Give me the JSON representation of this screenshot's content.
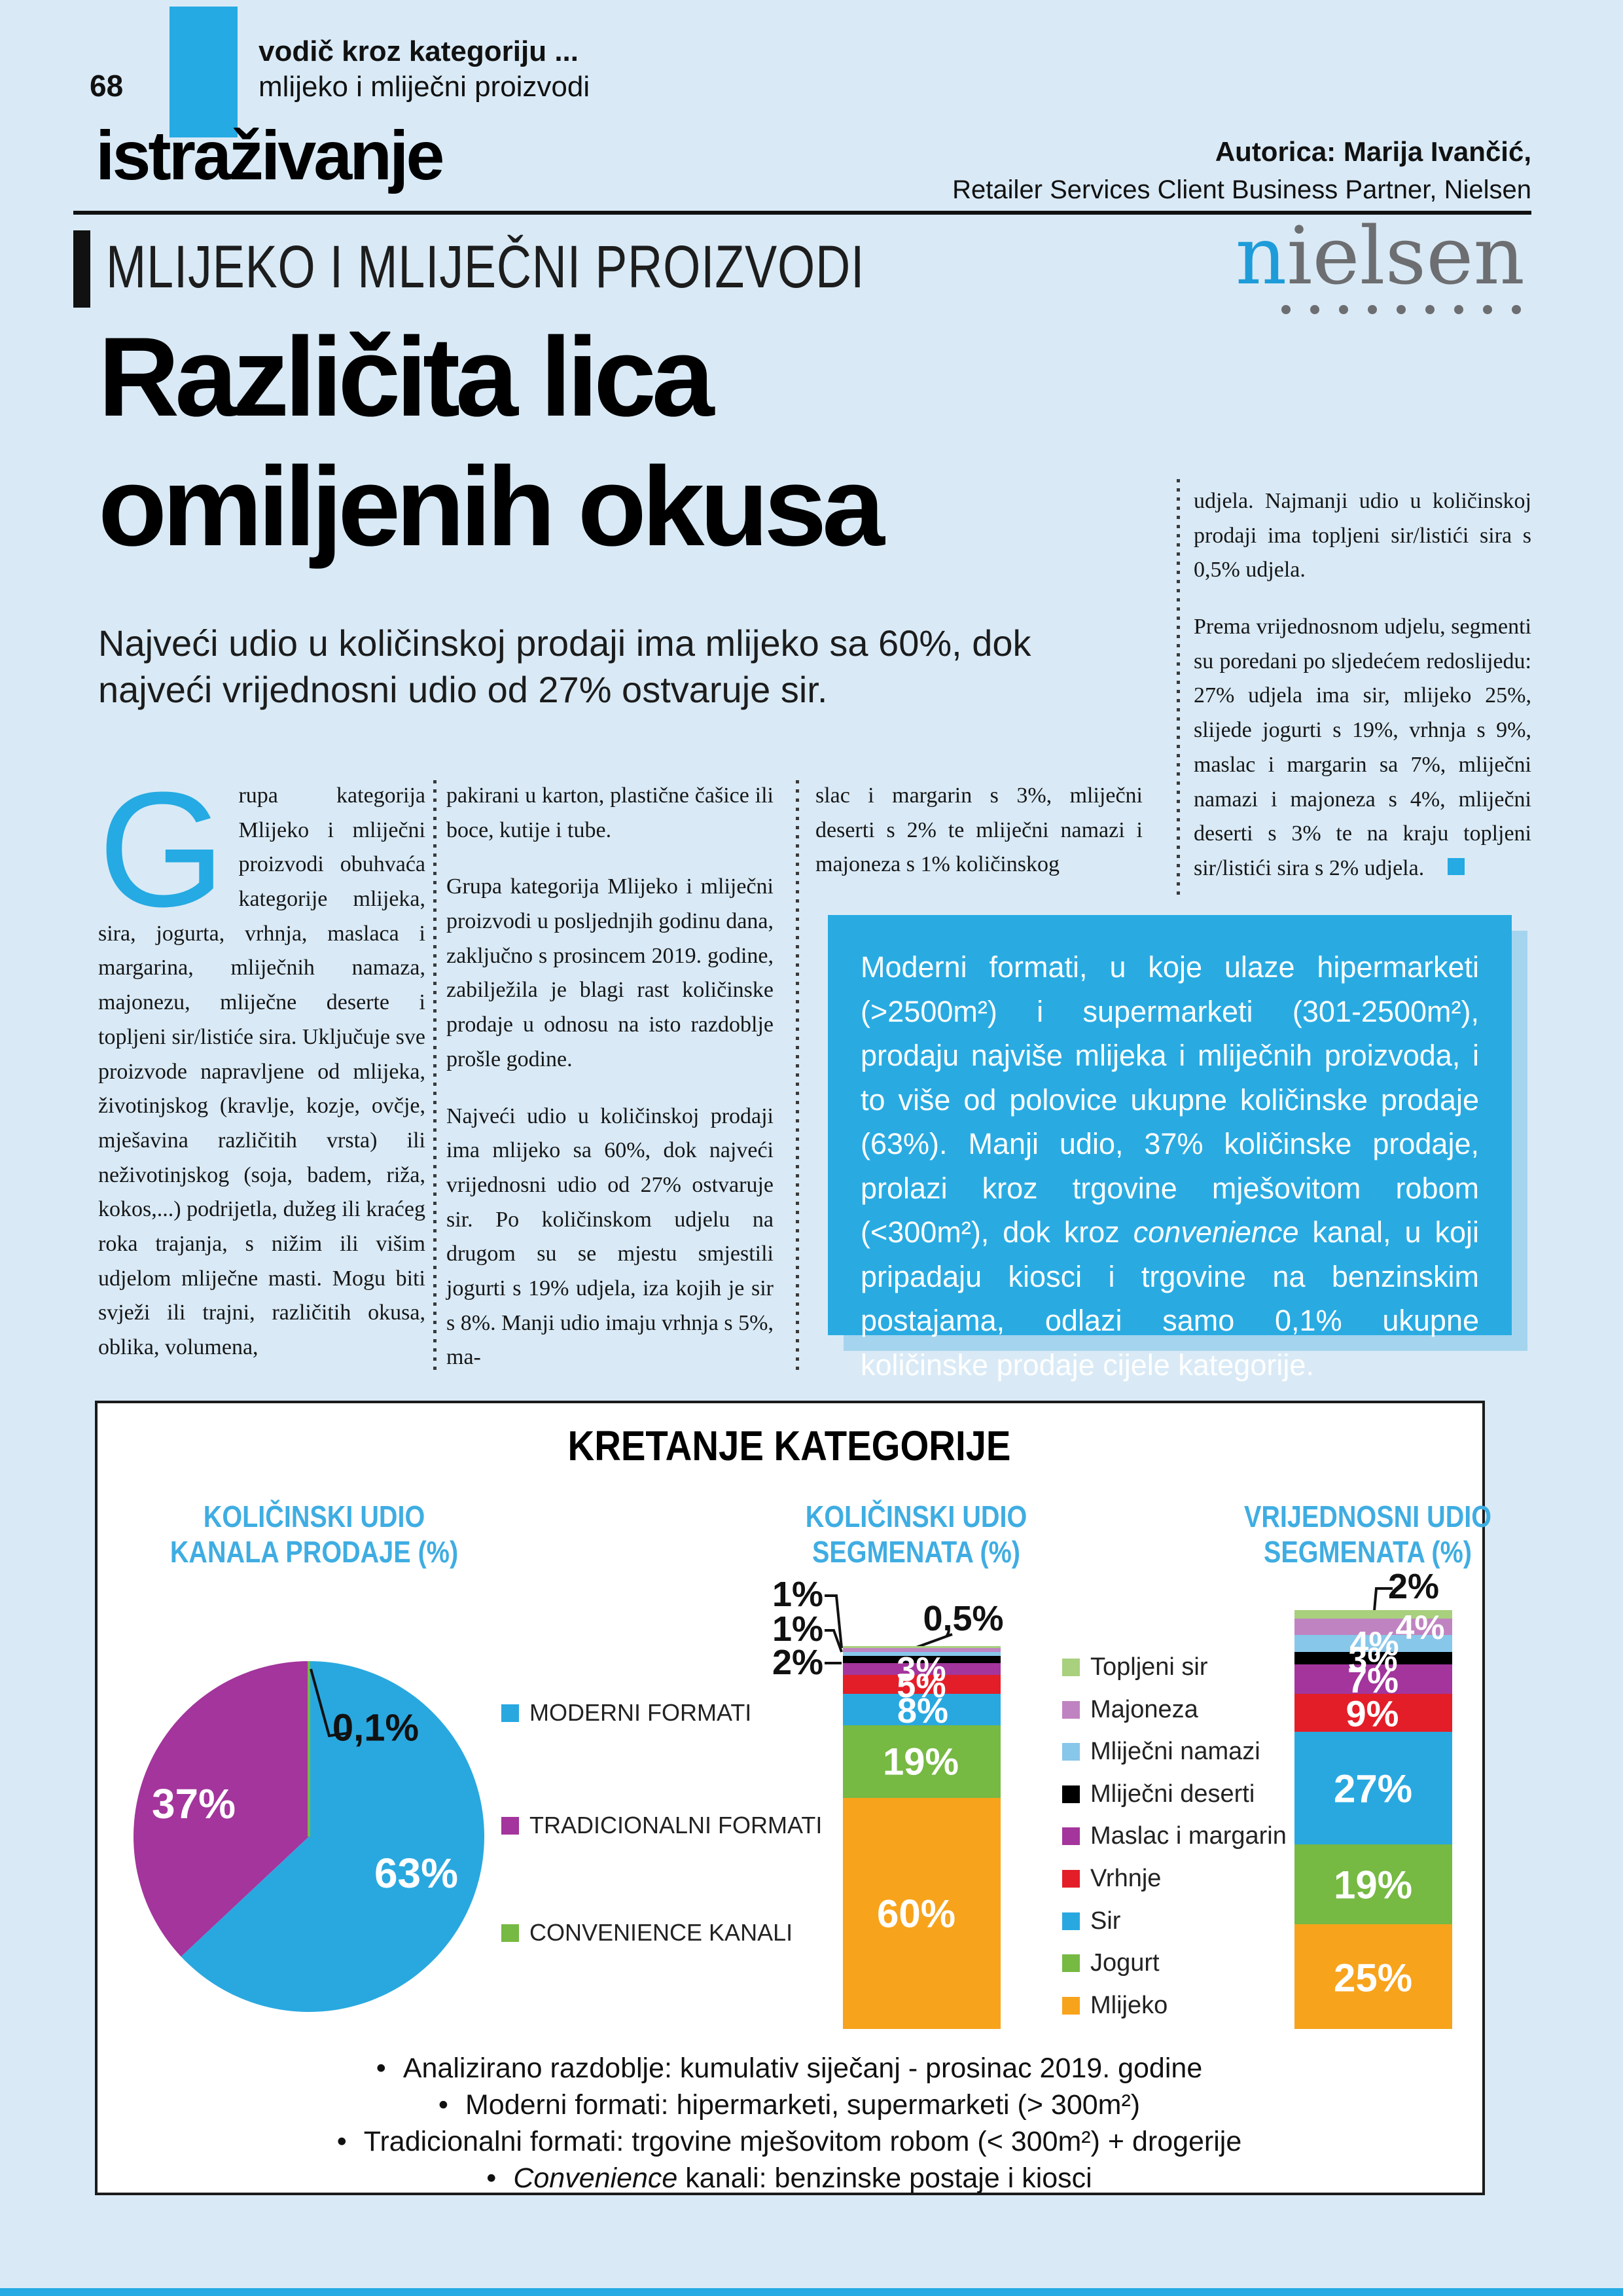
{
  "header": {
    "page_number": "68",
    "kicker_line1": "vodič kroz kategoriju ...",
    "kicker_line2": "mlijeko i mliječni proizvodi",
    "section_title": "istraživanje",
    "author_line1": "Autorica: Marija Ivančić,",
    "author_line2": "Retailer Services Client Business Partner, Nielsen"
  },
  "category_bar": {
    "heading": "MLIJEKO I MLIJEČNI PROIZVODI",
    "brand_first_letter": "n",
    "brand_rest": "ielsen",
    "brand_dots": 9
  },
  "article": {
    "title_line1": "Različita lica",
    "title_line2": "omiljenih okusa",
    "lead": "Najveći udio u količinskoj prodaji ima mlijeko sa 60%, dok najveći vrijednosni udio od 27% ostvaruje sir.",
    "dropcap": "G",
    "col1": "rupa kategorija Mlijeko i mliječni proizvodi obuhvaća kategorije mlijeka, sira, jogurta, vrhnja, maslaca i margarina, mliječnih namaza, majonezu, mliječne deserte i topljeni sir/listiće sira. Uključuje sve proizvode napravljene od mlijeka, životinjskog (kravlje, kozje, ovčje, mješavina različitih vrsta) ili neživotinjskog (soja, badem, riža, kokos,...) podrijetla, dužeg ili kraćeg roka trajanja, s nižim ili višim udjelom mliječne masti. Mogu biti svježi ili trajni, različitih okusa, oblika, volumena,",
    "col2_p1": "pakirani u karton, plastične čašice ili boce, kutije i tube.",
    "col2_p2": "Grupa kategorija Mlijeko i mliječni proizvodi u posljednjih godinu dana, zaključno s prosincem 2019. godine, zabilježila je blagi rast količinske prodaje u odnosu na isto razdoblje prošle godine.",
    "col2_p3": "Najveći udio u količinskoj prodaji ima mlijeko sa 60%, dok najveći vrijednosni udio od 27% ostvaruje sir. Po količinskom udjelu na drugom su se mjestu smjestili jogurti s 19% udjela, iza kojih je sir s 8%. Manji udio imaju vrhnja s 5%, ma-",
    "col3": "slac i margarin s 3%, mliječni deserti s 2% te mliječni namazi i majoneza s 1% količinskog",
    "col4_p1": "udjela. Najmanji udio u količinskoj prodaji ima topljeni sir/listići sira s 0,5% udjela.",
    "col4_p2": "Prema vrijednosnom udjelu, segmenti su poredani po sljedećem redoslijedu: 27% udjela ima sir, mlijeko 25%, slijede jogurti s 19%, vrhnja s 9%, maslac i margarin sa 7%, mliječni namazi i majoneza s 4%, mliječni deserti s 3% te na kraju topljeni sir/listići sira s 2% udjela."
  },
  "callout": {
    "text_before_italic": "Moderni formati, u koje ulaze hipermarketi (>2500m²) i supermarketi (301-2500m²), prodaju najviše mlijeka i mliječnih proizvoda, i to više od polovice ukupne količinske prodaje (63%). Manji udio, 37% količinske prodaje, prolazi kroz trgovine mješovitom robom (<300m²), dok kroz ",
    "italic": "convenience",
    "text_after_italic": " kanal, u koji pripadaju kiosci i trgovine na benzinskim postajama, odlazi samo 0,1% ukupne količinske prodaje cijele kategorije."
  },
  "chart_panel": {
    "title": "KRETANJE KATEGORIJE"
  },
  "chart_data": [
    {
      "type": "pie",
      "title_line1": "KOLIČINSKI UDIO",
      "title_line2": "KANALA PRODAJE (%)",
      "unit": "%",
      "slices": [
        {
          "label": "MODERNI FORMATI",
          "value": 63,
          "display": "63%",
          "color": "#29a8e0"
        },
        {
          "label": "TRADICIONALNI FORMATI",
          "value": 37,
          "display": "37%",
          "color": "#a3359c"
        },
        {
          "label": "CONVENIENCE KANALI",
          "value": 0.1,
          "display": "0,1%",
          "color": "#76b943"
        }
      ],
      "legend_position": "right"
    },
    {
      "type": "stacked-bar",
      "title_line1": "KOLIČINSKI UDIO",
      "title_line2": "SEGMENATA (%)",
      "unit": "%",
      "segments_top_to_bottom": [
        {
          "label": "Topljeni sir",
          "value": 0.5,
          "display": "0,5%",
          "color": "#a8d07d"
        },
        {
          "label": "Majoneza",
          "value": 1,
          "display": "1%",
          "color": "#c083c1"
        },
        {
          "label": "Mliječni namazi",
          "value": 1,
          "display": "1%",
          "color": "#87c7ea"
        },
        {
          "label": "Mliječni deserti",
          "value": 2,
          "display": "2%",
          "color": "#000000"
        },
        {
          "label": "Maslac i margarin",
          "value": 3,
          "display": "3%",
          "color": "#a3359c"
        },
        {
          "label": "Vrhnje",
          "value": 5,
          "display": "5%",
          "color": "#e31e29"
        },
        {
          "label": "Sir",
          "value": 8,
          "display": "8%",
          "color": "#29a8e0"
        },
        {
          "label": "Jogurt",
          "value": 19,
          "display": "19%",
          "color": "#76b943"
        },
        {
          "label": "Mlijeko",
          "value": 60,
          "display": "60%",
          "color": "#f8a31c"
        }
      ]
    },
    {
      "type": "stacked-bar",
      "title_line1": "VRIJEDNOSNI UDIO",
      "title_line2": "SEGMENATA (%)",
      "unit": "%",
      "segments_top_to_bottom": [
        {
          "label": "Topljeni sir",
          "value": 2,
          "display": "2%",
          "color": "#a8d07d"
        },
        {
          "label": "Majoneza",
          "value": 4,
          "display": "4%",
          "color": "#c083c1"
        },
        {
          "label": "Mliječni namazi",
          "value": 4,
          "display": "4%",
          "color": "#87c7ea"
        },
        {
          "label": "Mliječni deserti",
          "value": 3,
          "display": "3%",
          "color": "#000000"
        },
        {
          "label": "Maslac i margarin",
          "value": 7,
          "display": "7%",
          "color": "#a3359c"
        },
        {
          "label": "Vrhnje",
          "value": 9,
          "display": "9%",
          "color": "#e31e29"
        },
        {
          "label": "Sir",
          "value": 27,
          "display": "27%",
          "color": "#29a8e0"
        },
        {
          "label": "Jogurt",
          "value": 19,
          "display": "19%",
          "color": "#76b943"
        },
        {
          "label": "Mlijeko",
          "value": 25,
          "display": "25%",
          "color": "#f8a31c"
        }
      ]
    }
  ],
  "footer_notes": {
    "bullet": "•",
    "items": [
      {
        "italic": "",
        "text": "Analizirano razdoblje: kumulativ siječanj - prosinac 2019. godine"
      },
      {
        "italic": "",
        "text": "Moderni formati: hipermarketi, supermarketi (> 300m²)"
      },
      {
        "italic": "",
        "text": "Tradicionalni formati: trgovine mješovitom robom (< 300m²) + drogerije"
      },
      {
        "italic": "Convenience",
        "text": " kanali: benzinske postaje i kiosci"
      }
    ]
  }
}
